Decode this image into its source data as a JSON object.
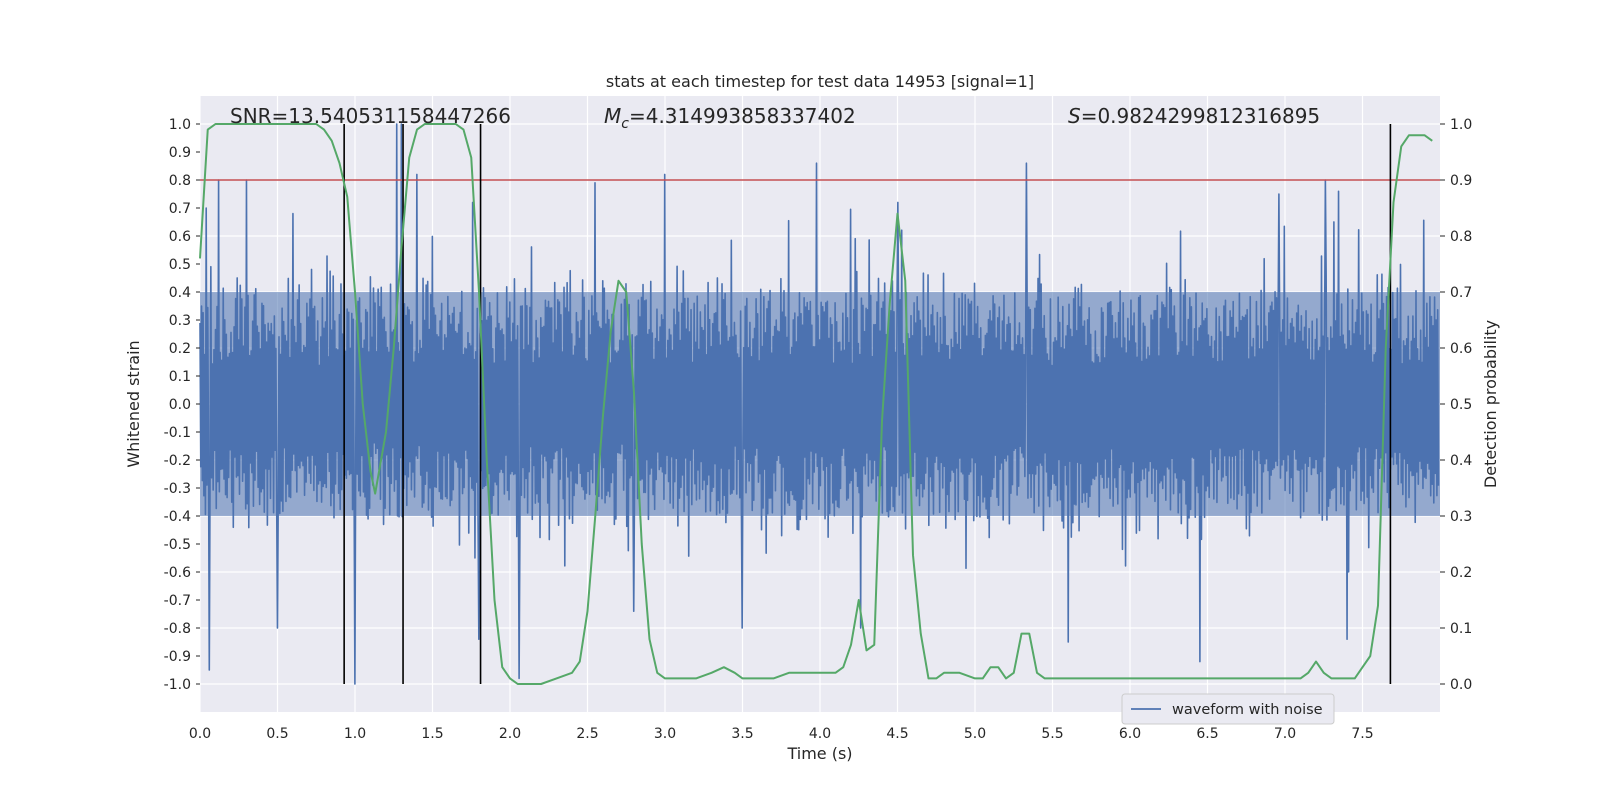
{
  "chart_data": {
    "type": "line",
    "title": "stats at each timestep for test data 14953 [signal=1]",
    "xlabel": "Time (s)",
    "ylabel": "Whitened strain",
    "ylabel_right": "Detection probability",
    "xlim": [
      0.0,
      8.0
    ],
    "ylim": [
      -1.1,
      1.1
    ],
    "ylim_right": [
      -0.05,
      1.05
    ],
    "grid": true,
    "x_ticks": [
      "0.0",
      "0.5",
      "1.0",
      "1.5",
      "2.0",
      "2.5",
      "3.0",
      "3.5",
      "4.0",
      "4.5",
      "5.0",
      "5.5",
      "6.0",
      "6.5",
      "7.0",
      "7.5"
    ],
    "y_ticks": [
      "1.0",
      "0.9",
      "0.8",
      "0.7",
      "0.6",
      "0.5",
      "0.4",
      "0.3",
      "0.2",
      "0.1",
      "0.0",
      "-0.1",
      "-0.2",
      "-0.3",
      "-0.4",
      "-0.5",
      "-0.6",
      "-0.7",
      "-0.8",
      "-0.9",
      "-1.0"
    ],
    "y_right_ticks": [
      "1.0",
      "0.9",
      "0.8",
      "0.7",
      "0.6",
      "0.5",
      "0.4",
      "0.3",
      "0.2",
      "0.1",
      "0.0"
    ],
    "annotations": {
      "snr": "SNR=13.540531158447266",
      "mc_symbol": "M",
      "mc_sub": "c",
      "mc_value": "=4.314993858337402",
      "s_symbol": "S",
      "s_value": "=0.9824299812316895"
    },
    "legend": {
      "label": "waveform with noise",
      "position": "lower-right"
    },
    "threshold": {
      "value": 0.9,
      "axis": "right",
      "color": "#c44e52"
    },
    "detection_markers": [
      0.93,
      1.31,
      1.81,
      7.68
    ],
    "waveform": {
      "name": "waveform with noise",
      "color": "#4c72b0",
      "t_start": 0.0,
      "t_end": 7.99,
      "samples": 1600,
      "typical_range": [
        -0.4,
        0.4
      ],
      "peaks": [
        [
          0.04,
          0.7
        ],
        [
          0.06,
          -0.95
        ],
        [
          0.12,
          0.8
        ],
        [
          0.3,
          0.8
        ],
        [
          0.5,
          -0.8
        ],
        [
          0.6,
          0.68
        ],
        [
          1.0,
          -1.0
        ],
        [
          1.27,
          1.0
        ],
        [
          1.3,
          1.0
        ],
        [
          1.4,
          0.82
        ],
        [
          1.76,
          0.72
        ],
        [
          1.8,
          -0.84
        ],
        [
          2.06,
          -0.98
        ],
        [
          2.55,
          0.79
        ],
        [
          2.8,
          -0.74
        ],
        [
          3.0,
          0.82
        ],
        [
          3.5,
          -0.8
        ],
        [
          3.98,
          0.86
        ],
        [
          4.26,
          -0.8
        ],
        [
          4.5,
          0.72
        ],
        [
          5.33,
          0.86
        ],
        [
          5.6,
          -0.85
        ],
        [
          6.45,
          -0.92
        ],
        [
          6.96,
          0.75
        ],
        [
          7.26,
          0.8
        ],
        [
          7.4,
          -0.84
        ]
      ]
    },
    "series": [
      {
        "name": "detection probability",
        "axis": "right",
        "color": "#55a868",
        "x": [
          0.0,
          0.05,
          0.1,
          0.15,
          0.2,
          0.25,
          0.3,
          0.35,
          0.4,
          0.45,
          0.5,
          0.55,
          0.6,
          0.65,
          0.7,
          0.75,
          0.8,
          0.85,
          0.9,
          0.95,
          1.0,
          1.05,
          1.1,
          1.13,
          1.2,
          1.25,
          1.3,
          1.35,
          1.4,
          1.45,
          1.5,
          1.55,
          1.6,
          1.65,
          1.7,
          1.75,
          1.8,
          1.85,
          1.9,
          1.95,
          2.0,
          2.05,
          2.1,
          2.2,
          2.3,
          2.4,
          2.45,
          2.5,
          2.55,
          2.6,
          2.65,
          2.7,
          2.75,
          2.8,
          2.85,
          2.9,
          2.95,
          3.0,
          3.1,
          3.2,
          3.3,
          3.38,
          3.45,
          3.5,
          3.6,
          3.7,
          3.8,
          3.9,
          4.0,
          4.1,
          4.15,
          4.2,
          4.25,
          4.3,
          4.35,
          4.4,
          4.45,
          4.5,
          4.55,
          4.6,
          4.65,
          4.7,
          4.75,
          4.8,
          4.9,
          5.0,
          5.05,
          5.1,
          5.15,
          5.2,
          5.25,
          5.3,
          5.35,
          5.4,
          5.45,
          5.5,
          5.6,
          5.7,
          5.8,
          5.9,
          6.0,
          6.1,
          6.2,
          6.3,
          6.4,
          6.5,
          6.6,
          6.7,
          6.8,
          6.9,
          7.0,
          7.1,
          7.15,
          7.2,
          7.25,
          7.3,
          7.4,
          7.45,
          7.5,
          7.55,
          7.6,
          7.65,
          7.7,
          7.75,
          7.8,
          7.85,
          7.9,
          7.95
        ],
        "values": [
          0.76,
          0.99,
          1.0,
          1.0,
          1.0,
          1.0,
          1.0,
          1.0,
          1.0,
          1.0,
          1.0,
          1.0,
          1.0,
          1.0,
          1.0,
          1.0,
          0.99,
          0.97,
          0.93,
          0.87,
          0.7,
          0.5,
          0.38,
          0.34,
          0.45,
          0.6,
          0.78,
          0.94,
          0.99,
          1.0,
          1.0,
          1.0,
          1.0,
          1.0,
          0.99,
          0.94,
          0.7,
          0.4,
          0.15,
          0.03,
          0.01,
          0.0,
          0.0,
          0.0,
          0.01,
          0.02,
          0.04,
          0.13,
          0.3,
          0.48,
          0.63,
          0.72,
          0.7,
          0.52,
          0.25,
          0.08,
          0.02,
          0.01,
          0.01,
          0.01,
          0.02,
          0.03,
          0.02,
          0.01,
          0.01,
          0.01,
          0.02,
          0.02,
          0.02,
          0.02,
          0.03,
          0.07,
          0.15,
          0.06,
          0.07,
          0.47,
          0.68,
          0.84,
          0.72,
          0.23,
          0.09,
          0.01,
          0.01,
          0.02,
          0.02,
          0.01,
          0.01,
          0.03,
          0.03,
          0.01,
          0.02,
          0.09,
          0.09,
          0.02,
          0.01,
          0.01,
          0.01,
          0.01,
          0.01,
          0.01,
          0.01,
          0.01,
          0.01,
          0.01,
          0.01,
          0.01,
          0.01,
          0.01,
          0.01,
          0.01,
          0.01,
          0.01,
          0.02,
          0.04,
          0.02,
          0.01,
          0.01,
          0.01,
          0.03,
          0.05,
          0.14,
          0.6,
          0.86,
          0.96,
          0.98,
          0.98,
          0.98,
          0.97
        ]
      }
    ]
  }
}
